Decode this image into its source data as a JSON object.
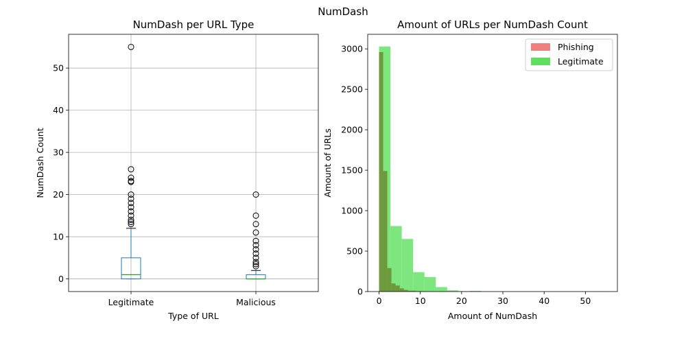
{
  "figure_title": "NumDash",
  "colors": {
    "box": "#1f77b4",
    "median": "#2ca02c",
    "grid": "#b0b0b0",
    "phishing": "#f08080",
    "legitimate": "#5ee05e",
    "overlap": "#6e9a3e"
  },
  "chart_data": [
    {
      "type": "box",
      "title": "NumDash per URL Type",
      "xlabel": "Type of URL",
      "ylabel": "NumDash Count",
      "categories": [
        "Legitimate",
        "Malicious"
      ],
      "ylim": [
        -3,
        58
      ],
      "yticks": [
        0,
        10,
        20,
        30,
        40,
        50
      ],
      "grid": true,
      "boxes": [
        {
          "name": "Legitimate",
          "whisker_low": 0,
          "q1": 0,
          "median": 1,
          "q3": 5,
          "whisker_high": 12,
          "outliers": [
            13,
            13.5,
            14,
            15,
            16,
            17,
            18,
            19,
            20,
            23,
            23.2,
            24,
            26,
            55
          ]
        },
        {
          "name": "Malicious",
          "whisker_low": 0,
          "q1": 0,
          "median": 0,
          "q3": 1,
          "whisker_high": 2,
          "outliers": [
            3,
            3.5,
            4,
            5,
            6,
            7,
            8,
            9,
            11,
            13,
            15,
            20
          ]
        }
      ]
    },
    {
      "type": "histogram",
      "title": "Amount of URLs per NumDash Count",
      "xlabel": "Amount of NumDash",
      "ylabel": "Amount of URLs",
      "xlim": [
        -2.75,
        57.75
      ],
      "ylim": [
        0,
        3180
      ],
      "xticks": [
        0,
        10,
        20,
        30,
        40,
        50
      ],
      "yticks": [
        0,
        500,
        1000,
        1500,
        2000,
        2500,
        3000
      ],
      "grid": false,
      "legend_position": "top-right",
      "series": [
        {
          "name": "Phishing",
          "bin_start": 0,
          "bin_width": 1,
          "values": [
            2960,
            1490,
            290,
            100,
            75,
            40,
            20,
            10,
            10,
            5,
            5,
            3,
            2,
            2,
            2,
            2,
            2,
            0,
            0,
            0
          ]
        },
        {
          "name": "Legitimate",
          "bin_start": 0,
          "bin_width": 2.75,
          "values": [
            3030,
            810,
            650,
            240,
            180,
            55,
            15,
            5,
            8,
            0,
            0,
            0,
            0,
            0,
            0,
            0,
            0,
            0,
            0,
            2
          ]
        }
      ]
    }
  ]
}
